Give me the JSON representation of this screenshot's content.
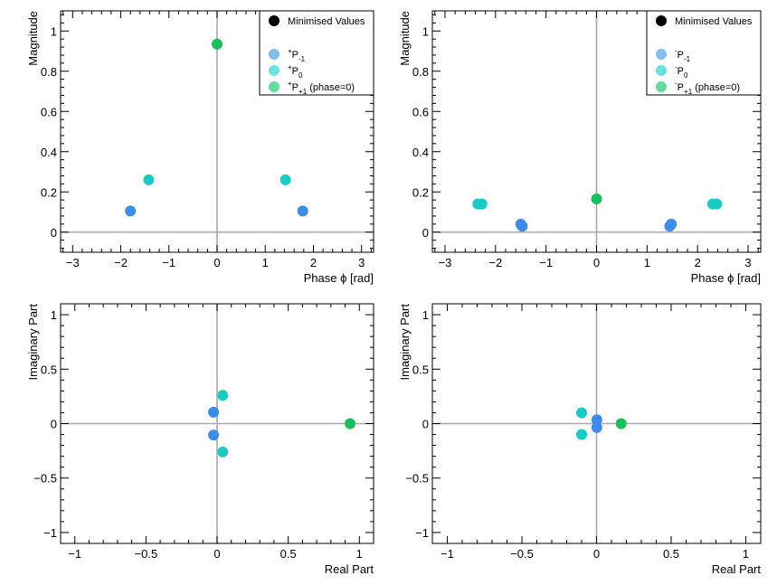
{
  "marker_colors": {
    "minimised": "#000000",
    "Pm1": "#3c8ce8",
    "P0": "#1dc9c4",
    "Pp1": "#1bbd5e",
    "Pm1_legend": "#82bdf2",
    "P0_legend": "#6fe0dd",
    "Pp1_legend": "#65dc9f"
  },
  "chart_data": [
    {
      "type": "scatter",
      "panel": "top-left",
      "xlabel": "Phase ϕ [rad]",
      "ylabel": "Magnitude",
      "xlim": [
        -3.25,
        3.25
      ],
      "ylim": [
        -0.1,
        1.1
      ],
      "xticks": [
        -3,
        -2,
        -1,
        0,
        1,
        2,
        3
      ],
      "xtick_labels": [
        "−3",
        "−2",
        "−1",
        "0",
        "1",
        "2",
        "3"
      ],
      "yticks": [
        0,
        0.2,
        0.4,
        0.6,
        0.8,
        1
      ],
      "ytick_labels": [
        "0",
        "0.2",
        "0.4",
        "0.6",
        "0.8",
        "1"
      ],
      "legend": {
        "position": "top-right",
        "entries": [
          {
            "key": "minimised",
            "sup": "",
            "main": "Minimised Values",
            "sub": "",
            "suffix": ""
          },
          {
            "key": "Pm1",
            "sup": "+",
            "main": "P",
            "sub": "-1",
            "suffix": ""
          },
          {
            "key": "P0",
            "sup": "+",
            "main": "P",
            "sub": "0",
            "suffix": ""
          },
          {
            "key": "Pp1",
            "sup": "+",
            "main": "P",
            "sub": "+1",
            "suffix": " (phase=0)"
          }
        ]
      },
      "series": [
        {
          "name": "P-1",
          "color_key": "Pm1",
          "points": [
            [
              -1.8,
              0.105
            ],
            [
              1.78,
              0.105
            ]
          ]
        },
        {
          "name": "P0",
          "color_key": "P0",
          "points": [
            [
              -1.42,
              0.26
            ],
            [
              1.42,
              0.26
            ]
          ]
        },
        {
          "name": "P+1",
          "color_key": "Pp1",
          "points": [
            [
              0.0,
              0.935
            ]
          ]
        }
      ]
    },
    {
      "type": "scatter",
      "panel": "top-right",
      "xlabel": "Phase ϕ [rad]",
      "ylabel": "Magnitude",
      "xlim": [
        -3.25,
        3.25
      ],
      "ylim": [
        -0.1,
        1.1
      ],
      "xticks": [
        -3,
        -2,
        -1,
        0,
        1,
        2,
        3
      ],
      "xtick_labels": [
        "−3",
        "−2",
        "−1",
        "0",
        "1",
        "2",
        "3"
      ],
      "yticks": [
        0,
        0.2,
        0.4,
        0.6,
        0.8,
        1
      ],
      "ytick_labels": [
        "0",
        "0.2",
        "0.4",
        "0.6",
        "0.8",
        "1"
      ],
      "legend": {
        "position": "top-right",
        "entries": [
          {
            "key": "minimised",
            "sup": "",
            "main": "Minimised Values",
            "sub": "",
            "suffix": ""
          },
          {
            "key": "Pm1",
            "sup": "-",
            "main": "P",
            "sub": "-1",
            "suffix": ""
          },
          {
            "key": "P0",
            "sup": "-",
            "main": "P",
            "sub": "0",
            "suffix": ""
          },
          {
            "key": "Pp1",
            "sup": "-",
            "main": "P",
            "sub": "+1",
            "suffix": " (phase=0)"
          }
        ]
      },
      "series": [
        {
          "name": "P-1",
          "color_key": "Pm1",
          "points": [
            [
              -1.5,
              0.04
            ],
            [
              -1.47,
              0.03
            ],
            [
              1.45,
              0.03
            ],
            [
              1.48,
              0.04
            ]
          ]
        },
        {
          "name": "P0",
          "color_key": "P0",
          "points": [
            [
              -2.35,
              0.14
            ],
            [
              -2.27,
              0.14
            ],
            [
              2.3,
              0.14
            ],
            [
              2.38,
              0.14
            ]
          ]
        },
        {
          "name": "P+1",
          "color_key": "Pp1",
          "points": [
            [
              0.0,
              0.165
            ]
          ]
        }
      ]
    },
    {
      "type": "scatter",
      "panel": "bottom-left",
      "xlabel": "Real Part",
      "ylabel": "Imaginary Part",
      "xlim": [
        -1.1,
        1.1
      ],
      "ylim": [
        -1.1,
        1.1
      ],
      "xticks": [
        -1,
        -0.5,
        0,
        0.5,
        1
      ],
      "xtick_labels": [
        "−1",
        "−0.5",
        "0",
        "0.5",
        "1"
      ],
      "yticks": [
        -1,
        -0.5,
        0,
        0.5,
        1
      ],
      "ytick_labels": [
        "−1",
        "−0.5",
        "0",
        "0.5",
        "1"
      ],
      "series": [
        {
          "name": "P-1",
          "color_key": "Pm1",
          "points": [
            [
              -0.025,
              0.105
            ],
            [
              -0.025,
              -0.105
            ]
          ]
        },
        {
          "name": "P0",
          "color_key": "P0",
          "points": [
            [
              0.04,
              0.26
            ],
            [
              0.04,
              -0.26
            ]
          ]
        },
        {
          "name": "P+1",
          "color_key": "Pp1",
          "points": [
            [
              0.935,
              0.0
            ]
          ]
        }
      ]
    },
    {
      "type": "scatter",
      "panel": "bottom-right",
      "xlabel": "Real Part",
      "ylabel": "Imaginary Part",
      "xlim": [
        -1.1,
        1.1
      ],
      "ylim": [
        -1.1,
        1.1
      ],
      "xticks": [
        -1,
        -0.5,
        0,
        0.5,
        1
      ],
      "xtick_labels": [
        "−1",
        "−0.5",
        "0",
        "0.5",
        "1"
      ],
      "yticks": [
        -1,
        -0.5,
        0,
        0.5,
        1
      ],
      "ytick_labels": [
        "−1",
        "−0.5",
        "0",
        "0.5",
        "1"
      ],
      "series": [
        {
          "name": "P-1",
          "color_key": "Pm1",
          "points": [
            [
              0.002,
              0.035
            ],
            [
              0.002,
              -0.035
            ]
          ]
        },
        {
          "name": "P0",
          "color_key": "P0",
          "points": [
            [
              -0.1,
              0.1
            ],
            [
              -0.1,
              -0.1
            ]
          ]
        },
        {
          "name": "P+1",
          "color_key": "Pp1",
          "points": [
            [
              0.165,
              0.0
            ]
          ]
        }
      ]
    }
  ]
}
